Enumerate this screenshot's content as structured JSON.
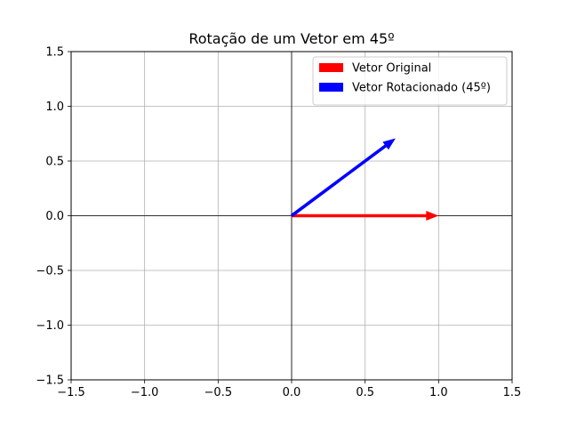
{
  "chart_data": {
    "type": "quiver",
    "title": "Rotação de um Vetor em 45º",
    "xlabel": "",
    "ylabel": "",
    "xlim": [
      -1.5,
      1.5
    ],
    "ylim": [
      -1.5,
      1.5
    ],
    "xticks": [
      -1.5,
      -1.0,
      -0.5,
      0.0,
      0.5,
      1.0,
      1.5
    ],
    "yticks": [
      -1.5,
      -1.0,
      -0.5,
      0.0,
      0.5,
      1.0,
      1.5
    ],
    "xtick_labels": [
      "−1.5",
      "−1.0",
      "−0.5",
      "0.0",
      "0.5",
      "1.0",
      "1.5"
    ],
    "ytick_labels": [
      "−1.5",
      "−1.0",
      "−0.5",
      "0.0",
      "0.5",
      "1.0",
      "1.5"
    ],
    "grid": true,
    "axis_lines_through_origin": true,
    "legend_position": "upper right",
    "series": [
      {
        "name": "Vetor Original",
        "color": "#ff0000",
        "origin": [
          0,
          0
        ],
        "vector": [
          1.0,
          0.0
        ]
      },
      {
        "name": "Vetor Rotacionado (45º)",
        "color": "#0000ff",
        "origin": [
          0,
          0
        ],
        "vector": [
          0.7071,
          0.7071
        ]
      }
    ]
  }
}
